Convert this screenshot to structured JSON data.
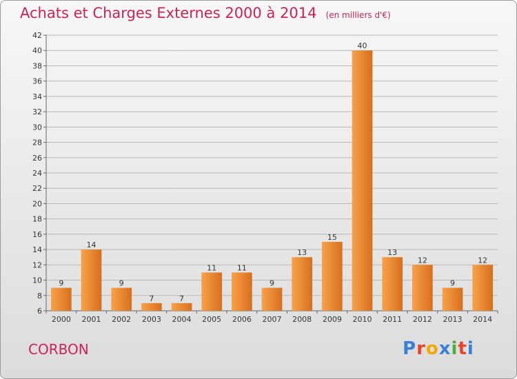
{
  "chart_data": {
    "type": "bar",
    "title": "Achats et Charges Externes 2000 à 2014",
    "subtitle": "(en milliers d'€)",
    "categories": [
      "2000",
      "2001",
      "2002",
      "2003",
      "2004",
      "2005",
      "2006",
      "2007",
      "2008",
      "2009",
      "2010",
      "2011",
      "2012",
      "2013",
      "2014"
    ],
    "values": [
      9,
      14,
      9,
      7,
      7,
      11,
      11,
      9,
      13,
      15,
      40,
      13,
      12,
      9,
      12
    ],
    "ylim": [
      6,
      42
    ],
    "yticks": [
      6,
      8,
      10,
      12,
      14,
      16,
      18,
      20,
      22,
      24,
      26,
      28,
      30,
      32,
      34,
      36,
      38,
      40,
      42
    ],
    "grid": true,
    "bar_color_light": "#f7a24a",
    "bar_color_dark": "#d86f1c"
  },
  "footer": {
    "commune": "CORBON",
    "logo": "Proxiti"
  },
  "colors": {
    "title": "#cc2255",
    "logo_letters": [
      "#3a7fd5",
      "#e8432d",
      "#f2a800",
      "#3a7fd5",
      "#45b03b",
      "#e8432d",
      "#3a7fd5"
    ]
  }
}
